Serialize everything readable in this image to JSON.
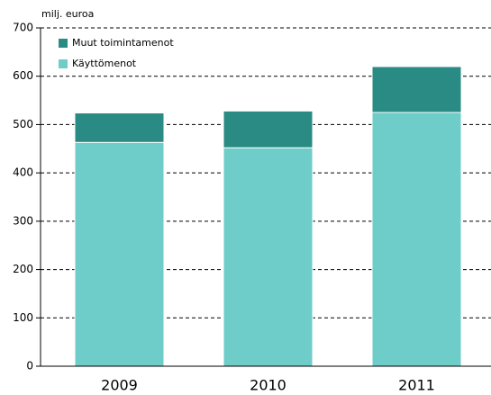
{
  "chart_data": {
    "type": "stacked_bar",
    "y_axis_label": "milj. euroa",
    "categories": [
      "2009",
      "2010",
      "2011"
    ],
    "series": [
      {
        "name": "Käyttömenot",
        "color": "#6ecdc9",
        "values": [
          463,
          452,
          525
        ]
      },
      {
        "name": "Muut toimintamenot",
        "color": "#2a8a84",
        "values": [
          61,
          76,
          95
        ]
      }
    ],
    "ylim": [
      0,
      700
    ],
    "yticks": [
      0,
      100,
      200,
      300,
      400,
      500,
      600,
      700
    ],
    "grid": true,
    "legend": "upper left"
  }
}
